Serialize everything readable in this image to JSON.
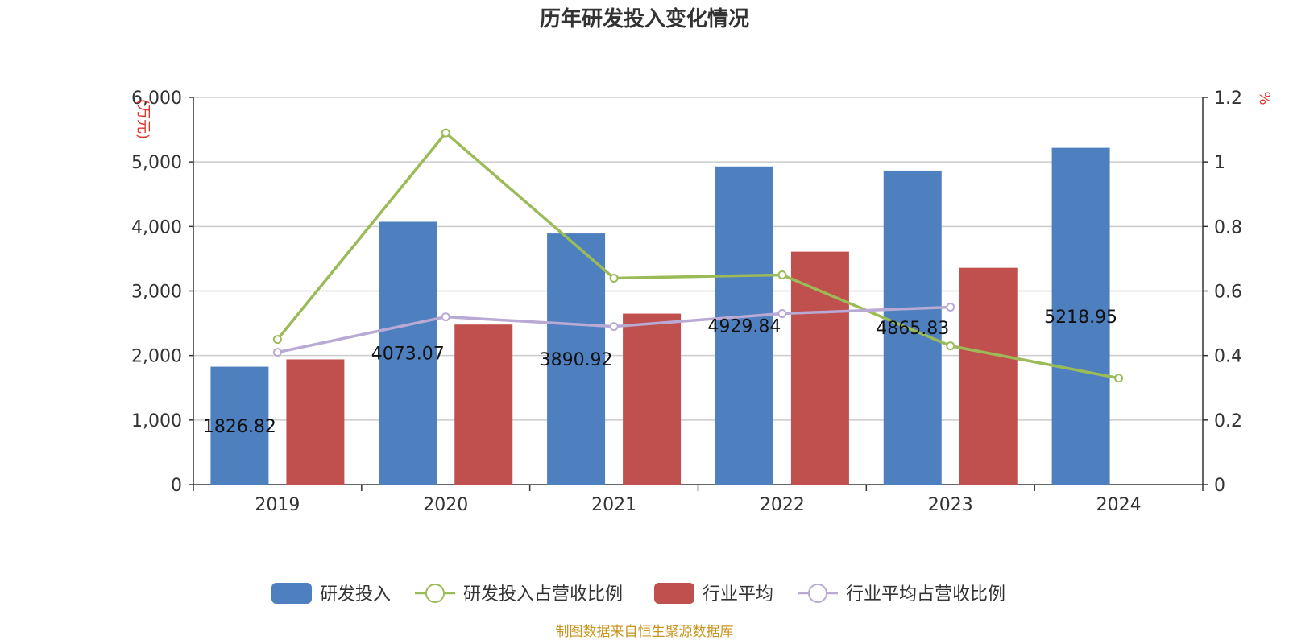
{
  "chart_data": {
    "type": "bar",
    "title": "历年研发投入变化情况",
    "categories": [
      "2019",
      "2020",
      "2021",
      "2022",
      "2023",
      "2024"
    ],
    "y_left": {
      "unit_label": "(万元)",
      "ylim": [
        0,
        6000
      ],
      "ticks": [
        "0",
        "1,000",
        "2,000",
        "3,000",
        "4,000",
        "5,000",
        "6,000"
      ]
    },
    "y_right": {
      "unit_label": "%",
      "ylim": [
        0,
        1.2
      ],
      "ticks": [
        "0",
        "0.2",
        "0.4",
        "0.6",
        "0.8",
        "1",
        "1.2"
      ]
    },
    "series": [
      {
        "name": "研发投入",
        "kind": "bar",
        "axis": "left",
        "color": "#4e7fbf",
        "values": [
          1826.82,
          4073.07,
          3890.92,
          4929.84,
          4865.83,
          5218.95
        ],
        "labels": [
          "1826.82",
          "4073.07",
          "3890.92",
          "4929.84",
          "4865.83",
          "5218.95"
        ]
      },
      {
        "name": "研发投入占营收比例",
        "kind": "line",
        "axis": "right",
        "color": "#9bbb59",
        "values": [
          0.45,
          1.09,
          0.64,
          0.65,
          0.43,
          0.33
        ]
      },
      {
        "name": "行业平均",
        "kind": "bar",
        "axis": "left",
        "color": "#c0504d",
        "values": [
          1940,
          2480,
          2650,
          3610,
          3360,
          null
        ]
      },
      {
        "name": "行业平均占营收比例",
        "kind": "line",
        "axis": "right",
        "color": "#b8aad4",
        "values": [
          0.41,
          0.52,
          0.49,
          0.53,
          0.55,
          null
        ]
      }
    ],
    "grid": true,
    "legend_position": "bottom"
  },
  "source": "制图数据来自恒生聚源数据库"
}
